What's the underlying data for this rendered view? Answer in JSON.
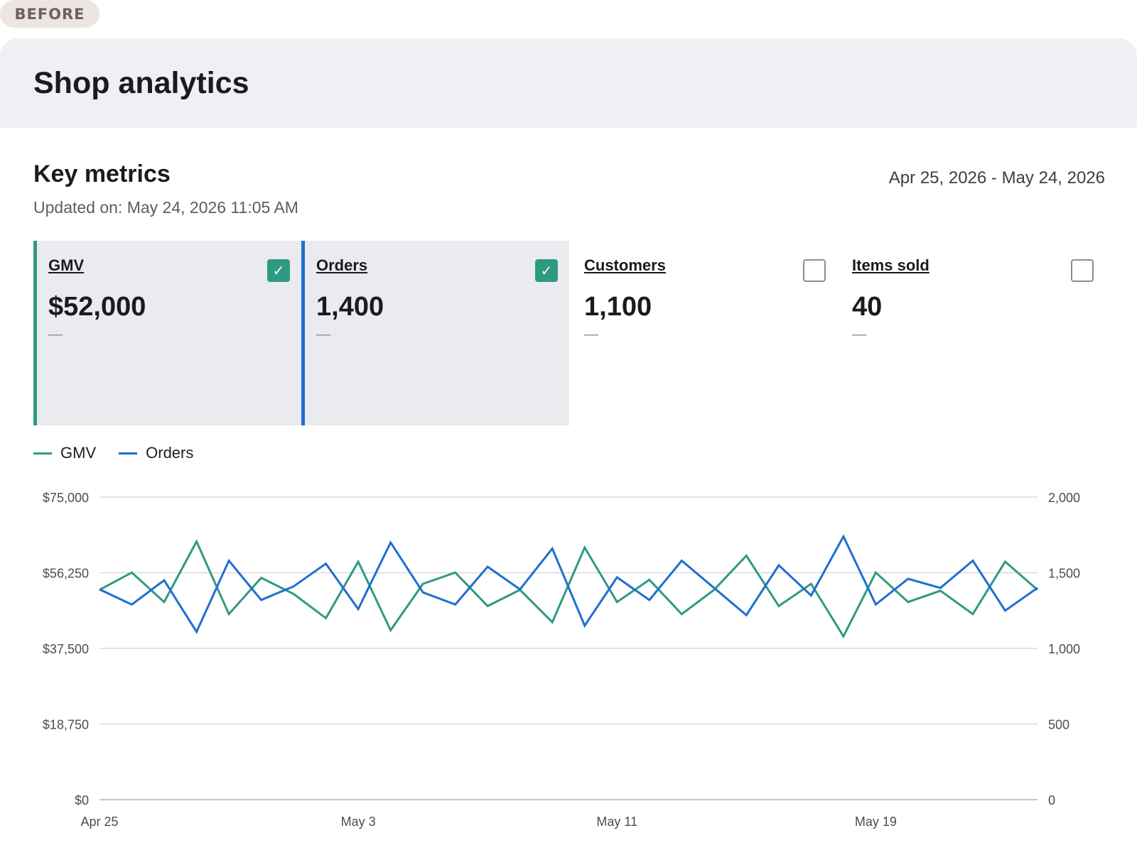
{
  "badge": "BEFORE",
  "header": {
    "title": "Shop analytics"
  },
  "section": {
    "title": "Key metrics",
    "updated": "Updated on: May 24, 2026 11:05 AM",
    "date_range": "Apr 25, 2026 - May 24, 2026"
  },
  "colors": {
    "gmv": "#2f9a82",
    "orders": "#1f6fd0",
    "grid": "#d9dadd"
  },
  "metrics": [
    {
      "name": "GMV",
      "value": "$52,000",
      "delta": "—",
      "selected": true,
      "checkmark": "✓"
    },
    {
      "name": "Orders",
      "value": "1,400",
      "delta": "—",
      "selected": true,
      "checkmark": "✓"
    },
    {
      "name": "Customers",
      "value": "1,100",
      "delta": "—",
      "selected": false,
      "checkmark": ""
    },
    {
      "name": "Items sold",
      "value": "40",
      "delta": "—",
      "selected": false,
      "checkmark": ""
    }
  ],
  "chart_data": {
    "type": "line",
    "x": [
      "Apr 25",
      "Apr 26",
      "Apr 27",
      "Apr 28",
      "Apr 29",
      "Apr 30",
      "May 1",
      "May 2",
      "May 3",
      "May 4",
      "May 5",
      "May 6",
      "May 7",
      "May 8",
      "May 9",
      "May 10",
      "May 11",
      "May 12",
      "May 13",
      "May 14",
      "May 15",
      "May 16",
      "May 17",
      "May 18",
      "May 19",
      "May 20",
      "May 21",
      "May 22",
      "May 23",
      "May 24"
    ],
    "x_ticks": [
      "Apr 25",
      "May 3",
      "May 11",
      "May 19"
    ],
    "series": [
      {
        "name": "GMV",
        "axis": "left",
        "values": [
          52000,
          56300,
          49000,
          64000,
          46000,
          55000,
          51000,
          45000,
          59000,
          42000,
          53500,
          56300,
          48000,
          52000,
          44000,
          62500,
          49000,
          54500,
          46000,
          52000,
          60500,
          48000,
          53500,
          40500,
          56300,
          49000,
          51800,
          46000,
          59000,
          52000
        ]
      },
      {
        "name": "Orders",
        "axis": "right",
        "values": [
          1390,
          1290,
          1450,
          1110,
          1580,
          1320,
          1410,
          1560,
          1260,
          1700,
          1370,
          1290,
          1540,
          1390,
          1660,
          1150,
          1470,
          1320,
          1580,
          1400,
          1220,
          1550,
          1350,
          1740,
          1290,
          1460,
          1400,
          1580,
          1250,
          1400
        ]
      }
    ],
    "y_left": {
      "range": [
        0,
        75000
      ],
      "ticks": [
        "$0",
        "$18,750",
        "$37,500",
        "$56,250",
        "$75,000"
      ]
    },
    "y_right": {
      "range": [
        0,
        2000
      ],
      "ticks": [
        "0",
        "500",
        "1,000",
        "1,500",
        "2,000"
      ]
    },
    "legend": "top-left",
    "grid": true
  }
}
